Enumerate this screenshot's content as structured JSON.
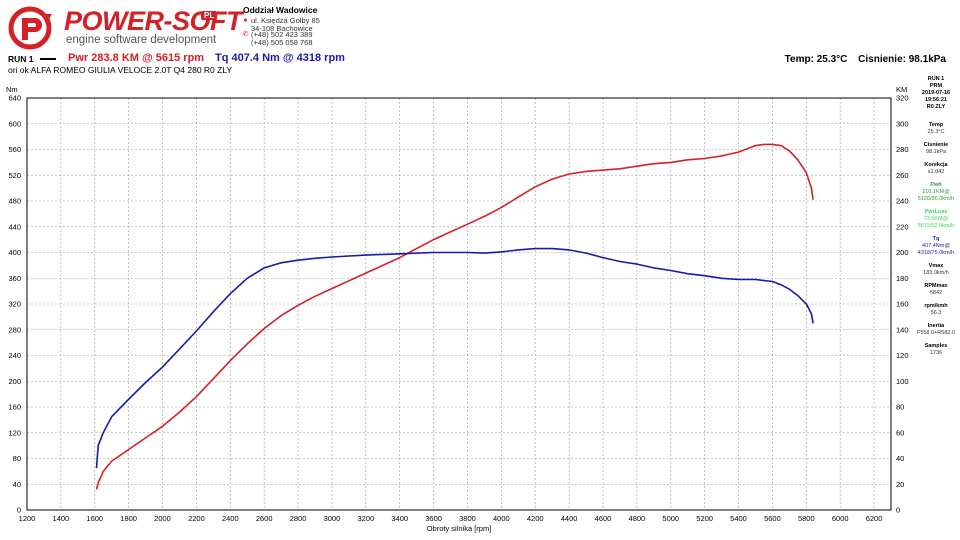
{
  "header": {
    "logo_text": "POWER-SOFT",
    "logo_badge": "PL",
    "logo_tagline": "engine software development",
    "branch_title": "Oddział Wadowice",
    "address_line1": "ul. Księdza Gołby 85",
    "address_line2": "34-108 Bachowice",
    "phone1": "(+48) 502 423 389",
    "phone2": "(+48) 505 058 768",
    "accent_color": "#d42027"
  },
  "run": {
    "label": "RUN 1",
    "power_summary": "Pwr  283.8 KM @ 5615 rpm",
    "torque_summary": "Tq  407.4 Nm @ 4318 rpm",
    "vehicle": "ori ok ALFA ROMEO GIULIA VELOCE 2.0T Q4 280 R0 ZLY",
    "temperature": "Temp: 25.3°C",
    "pressure": "Cisnienie: 98.1kPa"
  },
  "sidebar": {
    "run": "RUN 1",
    "mode": "PRM",
    "date": "2019-07-16",
    "time": "19:56:21",
    "tag": "R0 ZLY",
    "temp_label": "Temp",
    "temp_value": "25.3°C",
    "pressure_label": "Cisnienie",
    "pressure_value": "98.1kPa",
    "korekcja_label": "Korekcja",
    "korekcja_value": "x1.042",
    "pwh_label": "Pwh",
    "pwh_value1": "210.1KM@",
    "pwh_value2": "5120/86.0km/h",
    "pwrloss_label": "PwrLoss",
    "pwrloss_value1": "73.6KM@",
    "pwrloss_value2": "5615/92.0km/h",
    "tq_label": "Tq",
    "tq_value1": "407.4Nm@",
    "tq_value2": "4318/75.0km/h",
    "vmax_label": "Vmax",
    "vmax_value": "183.0km/h",
    "rpmmax_label": "RPMmax",
    "rpmmax_value": "5842",
    "rpmkmh_label": "rpm/kmh",
    "rpmkmh_value": "56.3",
    "inertia_label": "Inertia",
    "inertia_value": "F558.0+R582.0",
    "samples_label": "Samples",
    "samples_value": "1736"
  },
  "chart_data": {
    "type": "line",
    "xlabel": "Obroty silnika [rpm]",
    "ylabel_left": "Nm",
    "ylabel_right": "KM",
    "xlim": [
      1200,
      6300
    ],
    "ylim_left": [
      0,
      640
    ],
    "ylim_right": [
      0,
      320
    ],
    "x_ticks": [
      1200,
      1400,
      1600,
      1800,
      2000,
      2200,
      2400,
      2600,
      2800,
      3000,
      3200,
      3400,
      3600,
      3800,
      4000,
      4200,
      4400,
      4600,
      4800,
      5000,
      5200,
      5400,
      5600,
      5800,
      6000,
      6200
    ],
    "y_ticks_left": [
      0,
      40,
      80,
      120,
      160,
      200,
      240,
      280,
      320,
      360,
      400,
      440,
      480,
      520,
      560,
      600,
      640
    ],
    "y_ticks_right": [
      0,
      20,
      40,
      60,
      80,
      100,
      120,
      140,
      160,
      180,
      200,
      220,
      240,
      260,
      280,
      300,
      320
    ],
    "grid": true,
    "series": [
      {
        "name": "Pwr",
        "axis": "right",
        "color": "#d42027",
        "x": [
          1610,
          1620,
          1650,
          1700,
          1800,
          1900,
          2000,
          2100,
          2200,
          2300,
          2400,
          2500,
          2600,
          2700,
          2800,
          2900,
          3000,
          3100,
          3200,
          3300,
          3400,
          3500,
          3600,
          3700,
          3800,
          3900,
          4000,
          4100,
          4200,
          4300,
          4400,
          4500,
          4600,
          4700,
          4800,
          4900,
          5000,
          5100,
          5200,
          5300,
          5400,
          5500,
          5550,
          5600,
          5650,
          5700,
          5750,
          5800,
          5830,
          5840
        ],
        "values": [
          16,
          21,
          30,
          38,
          47,
          56,
          65,
          76,
          88,
          102,
          116,
          129,
          141,
          151,
          159,
          166,
          172,
          178,
          184,
          190,
          196,
          203,
          210,
          216,
          222,
          228,
          235,
          243,
          251,
          257,
          261,
          263,
          264,
          265,
          267,
          269,
          270,
          272,
          273,
          275,
          278,
          283,
          284,
          284,
          283,
          279,
          272,
          262,
          250,
          241
        ]
      },
      {
        "name": "Tq",
        "axis": "left",
        "color": "#1a1aa8",
        "x": [
          1610,
          1620,
          1650,
          1700,
          1800,
          1900,
          2000,
          2100,
          2200,
          2300,
          2400,
          2500,
          2600,
          2700,
          2800,
          2900,
          3000,
          3200,
          3400,
          3600,
          3800,
          3900,
          4000,
          4100,
          4200,
          4300,
          4400,
          4500,
          4600,
          4700,
          4800,
          4900,
          5000,
          5100,
          5200,
          5300,
          5400,
          5500,
          5600,
          5650,
          5700,
          5750,
          5800,
          5830,
          5840
        ],
        "values": [
          65,
          100,
          120,
          145,
          172,
          198,
          222,
          250,
          278,
          308,
          336,
          360,
          376,
          384,
          388,
          391,
          393,
          396,
          398,
          400,
          400,
          399,
          401,
          404,
          406,
          406,
          404,
          399,
          392,
          386,
          382,
          376,
          372,
          367,
          364,
          360,
          358,
          358,
          355,
          350,
          343,
          333,
          320,
          305,
          290
        ]
      }
    ]
  }
}
